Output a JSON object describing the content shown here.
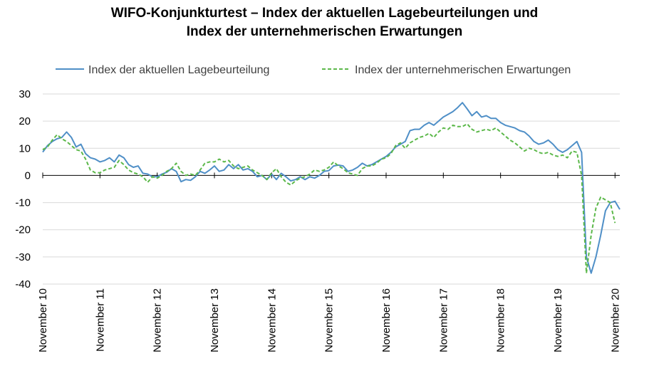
{
  "chart_data": {
    "type": "line",
    "title": [
      "WIFO-Konjunkturtest – Index der aktuellen Lagebeurteilungen und",
      "Index der unternehmerischen Erwartungen"
    ],
    "xlabel": "",
    "ylabel": "",
    "ylim": [
      -40,
      30
    ],
    "yticks": [
      30,
      20,
      10,
      0,
      -10,
      -20,
      -30,
      -40
    ],
    "xtick_labels": [
      "November 10",
      "November 11",
      "November 12",
      "November 13",
      "November 14",
      "November 15",
      "November 16",
      "November 17",
      "November 18",
      "November 19",
      "November 20"
    ],
    "x_start": "2010-11",
    "frequency": "monthly",
    "legend_position": "top",
    "grid": "horizontal",
    "series": [
      {
        "name": "Index der aktuellen Lagebeurteilung",
        "color": "#4f8fc7",
        "dash": "solid",
        "values": [
          8.6,
          11.0,
          12.5,
          13.5,
          14.0,
          16.0,
          14.0,
          10.5,
          11.5,
          8.0,
          6.5,
          6.0,
          5.0,
          5.5,
          6.5,
          5.0,
          7.5,
          6.5,
          4.0,
          3.0,
          3.5,
          0.8,
          0.5,
          -0.5,
          -0.5,
          0.5,
          1.2,
          2.5,
          1.5,
          -2.3,
          -1.5,
          -1.8,
          -0.5,
          1.5,
          0.8,
          2.0,
          3.5,
          1.5,
          2.0,
          4.0,
          2.5,
          4.0,
          2.0,
          2.5,
          1.5,
          -0.5,
          0.0,
          -1.5,
          0.5,
          -1.5,
          0.8,
          -0.5,
          -2.0,
          -1.5,
          -0.5,
          -1.5,
          -0.5,
          -1.0,
          0.0,
          1.5,
          1.8,
          3.5,
          3.8,
          3.5,
          1.5,
          2.0,
          3.0,
          4.5,
          3.5,
          4.0,
          5.0,
          6.0,
          7.0,
          8.5,
          10.5,
          11.5,
          12.5,
          16.5,
          17.0,
          17.0,
          18.5,
          19.5,
          18.5,
          20.0,
          21.5,
          22.5,
          23.5,
          25.0,
          26.8,
          24.5,
          22.0,
          23.5,
          21.5,
          22.0,
          21.0,
          21.0,
          19.5,
          18.5,
          18.0,
          17.5,
          16.5,
          16.0,
          14.5,
          12.5,
          11.5,
          12.0,
          13.0,
          11.5,
          9.5,
          8.5,
          9.5,
          11.0,
          12.5,
          8.5,
          -30.0,
          -36.0,
          -30.0,
          -22.0,
          -13.0,
          -10.0,
          -9.5,
          -12.5
        ]
      },
      {
        "name": "Index der unternehmerischen Erwartungen",
        "color": "#5cb84a",
        "dash": "dashed",
        "values": [
          9.5,
          10.5,
          13.0,
          15.0,
          13.5,
          12.5,
          11.0,
          9.5,
          9.0,
          6.0,
          2.0,
          1.0,
          1.0,
          2.0,
          2.5,
          3.0,
          5.5,
          4.0,
          2.0,
          1.0,
          0.5,
          -0.5,
          -2.5,
          -0.5,
          -1.0,
          0.0,
          1.5,
          2.5,
          4.5,
          1.5,
          0.0,
          0.5,
          0.0,
          2.0,
          4.5,
          5.0,
          5.0,
          6.0,
          5.0,
          5.5,
          3.5,
          2.5,
          3.0,
          3.5,
          2.0,
          1.0,
          0.0,
          -1.5,
          1.0,
          2.5,
          -0.5,
          -2.5,
          -3.5,
          -2.0,
          -1.0,
          -0.5,
          0.5,
          2.0,
          1.5,
          2.0,
          3.0,
          5.0,
          3.5,
          2.5,
          1.0,
          0.5,
          0.0,
          2.5,
          3.5,
          3.5,
          4.5,
          6.0,
          6.5,
          8.0,
          11.0,
          12.0,
          10.0,
          12.0,
          13.0,
          14.0,
          14.5,
          15.5,
          14.0,
          16.0,
          17.5,
          17.0,
          18.5,
          18.0,
          18.0,
          19.0,
          17.0,
          16.0,
          16.5,
          17.0,
          16.5,
          17.5,
          16.0,
          14.5,
          13.0,
          12.0,
          10.5,
          9.0,
          10.0,
          9.5,
          8.5,
          8.0,
          8.5,
          7.5,
          7.0,
          7.5,
          6.5,
          9.0,
          8.5,
          0.0,
          -36.0,
          -22.0,
          -12.0,
          -8.0,
          -9.0,
          -10.0,
          -17.5
        ]
      }
    ]
  }
}
